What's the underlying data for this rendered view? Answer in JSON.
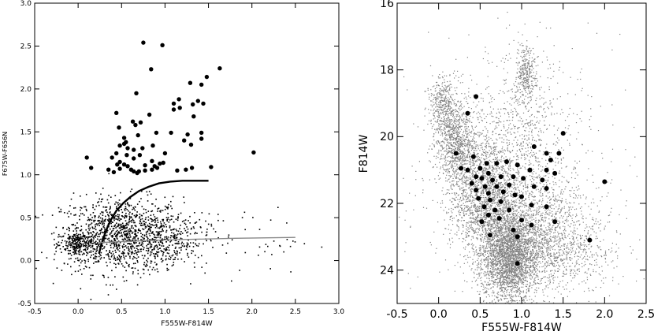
{
  "chart_data": [
    {
      "type": "scatter",
      "xlabel": "F555W-F814W",
      "ylabel": "F675W-F656N",
      "xlim": [
        -0.5,
        3.0
      ],
      "ylim": [
        -0.5,
        3.0
      ],
      "xticks": [
        "-0.5",
        "0.0",
        "0.5",
        "1.0",
        "1.5",
        "2.0",
        "2.5",
        "3.0"
      ],
      "yticks": [
        "-0.5",
        "0.0",
        "0.5",
        "1.0",
        "1.5",
        "2.0",
        "2.5",
        "3.0"
      ],
      "grid": false,
      "series": [
        {
          "style": "small black dots",
          "color": "#000000",
          "clusters": [
            {
              "cx": 0.5,
              "cy": 0.3,
              "sx": 0.35,
              "sy": 0.22,
              "n": 1100
            },
            {
              "cx": 0.0,
              "cy": 0.2,
              "sx": 0.1,
              "sy": 0.08,
              "n": 260
            },
            {
              "cx": 1.0,
              "cy": 0.25,
              "sx": 0.25,
              "sy": 0.15,
              "n": 260
            },
            {
              "cx": 1.9,
              "cy": 0.25,
              "sx": 0.4,
              "sy": 0.2,
              "n": 45
            }
          ]
        },
        {
          "style": "large filled circles",
          "color": "#000000",
          "points": [
            [
              0.75,
              2.54
            ],
            [
              0.97,
              2.51
            ],
            [
              0.84,
              2.23
            ],
            [
              1.63,
              2.24
            ],
            [
              1.48,
              2.14
            ],
            [
              1.29,
              2.07
            ],
            [
              1.42,
              2.05
            ],
            [
              0.67,
              1.95
            ],
            [
              1.16,
              1.88
            ],
            [
              1.1,
              1.83
            ],
            [
              1.38,
              1.86
            ],
            [
              1.44,
              1.83
            ],
            [
              1.32,
              1.82
            ],
            [
              1.17,
              1.78
            ],
            [
              1.1,
              1.76
            ],
            [
              1.33,
              1.68
            ],
            [
              0.44,
              1.72
            ],
            [
              0.82,
              1.7
            ],
            [
              0.63,
              1.62
            ],
            [
              0.72,
              1.61
            ],
            [
              0.66,
              1.58
            ],
            [
              0.47,
              1.55
            ],
            [
              0.9,
              1.49
            ],
            [
              1.07,
              1.49
            ],
            [
              0.69,
              1.46
            ],
            [
              1.26,
              1.47
            ],
            [
              1.42,
              1.49
            ],
            [
              0.53,
              1.43
            ],
            [
              1.42,
              1.42
            ],
            [
              1.22,
              1.4
            ],
            [
              1.3,
              1.35
            ],
            [
              0.55,
              1.38
            ],
            [
              0.53,
              1.36
            ],
            [
              0.48,
              1.34
            ],
            [
              0.86,
              1.34
            ],
            [
              0.57,
              1.31
            ],
            [
              0.74,
              1.31
            ],
            [
              0.64,
              1.29
            ],
            [
              0.71,
              1.23
            ],
            [
              0.44,
              1.25
            ],
            [
              0.56,
              1.23
            ],
            [
              1.0,
              1.25
            ],
            [
              0.1,
              1.2
            ],
            [
              0.39,
              1.2
            ],
            [
              0.48,
              1.15
            ],
            [
              0.64,
              1.19
            ],
            [
              0.85,
              1.16
            ],
            [
              0.45,
              1.12
            ],
            [
              0.53,
              1.12
            ],
            [
              0.57,
              1.1
            ],
            [
              0.77,
              1.11
            ],
            [
              0.94,
              1.13
            ],
            [
              0.98,
              1.14
            ],
            [
              0.88,
              1.1
            ],
            [
              0.91,
              1.08
            ],
            [
              0.35,
              1.06
            ],
            [
              0.48,
              1.07
            ],
            [
              0.61,
              1.06
            ],
            [
              0.64,
              1.04
            ],
            [
              0.7,
              1.04
            ],
            [
              0.77,
              1.05
            ],
            [
              0.85,
              1.06
            ],
            [
              1.24,
              1.06
            ],
            [
              1.31,
              1.08
            ],
            [
              1.53,
              1.09
            ],
            [
              1.14,
              1.05
            ],
            [
              0.15,
              1.08
            ],
            [
              0.41,
              1.03
            ],
            [
              0.68,
              1.02
            ],
            [
              2.02,
              1.26
            ]
          ]
        },
        {
          "style": "thick black curve",
          "color": "#000000",
          "points": [
            [
              0.24,
              0.08
            ],
            [
              0.26,
              0.16
            ],
            [
              0.29,
              0.26
            ],
            [
              0.33,
              0.37
            ],
            [
              0.38,
              0.48
            ],
            [
              0.44,
              0.58
            ],
            [
              0.52,
              0.67
            ],
            [
              0.6,
              0.74
            ],
            [
              0.7,
              0.81
            ],
            [
              0.81,
              0.86
            ],
            [
              0.93,
              0.9
            ],
            [
              1.06,
              0.92
            ],
            [
              1.2,
              0.93
            ],
            [
              1.35,
              0.93
            ],
            [
              1.5,
              0.93
            ]
          ]
        },
        {
          "style": "thin gray line",
          "color": "#888888",
          "points": [
            [
              0.25,
              0.21
            ],
            [
              1.0,
              0.24
            ],
            [
              1.8,
              0.26
            ],
            [
              2.5,
              0.27
            ]
          ]
        }
      ]
    },
    {
      "type": "scatter",
      "xlabel": "F555W-F814W",
      "ylabel": "F814W",
      "xlim": [
        -0.5,
        2.5
      ],
      "ylim": [
        25.0,
        16.0
      ],
      "xticks": [
        "-0.5",
        "0.0",
        "0.5",
        "1.0",
        "1.5",
        "2.0",
        "2.5"
      ],
      "yticks": [
        "16",
        "18",
        "20",
        "22",
        "24"
      ],
      "grid": false,
      "series": [
        {
          "style": "gray dots (dense)",
          "color": "#808080",
          "clusters": [
            {
              "cx": 0.85,
              "cy": 23.6,
              "sx": 0.17,
              "sy": 0.7,
              "n": 2600
            },
            {
              "cx": 0.55,
              "cy": 21.8,
              "sx": 0.2,
              "sy": 0.9,
              "n": 1700
            },
            {
              "cx": 0.2,
              "cy": 20.2,
              "sx": 0.12,
              "sy": 0.6,
              "n": 900
            },
            {
              "cx": 0.05,
              "cy": 19.0,
              "sx": 0.08,
              "sy": 0.4,
              "n": 350
            },
            {
              "cx": 1.2,
              "cy": 22.8,
              "sx": 0.3,
              "sy": 0.8,
              "n": 1000
            },
            {
              "cx": 1.5,
              "cy": 23.5,
              "sx": 0.35,
              "sy": 0.6,
              "n": 500
            },
            {
              "cx": 1.05,
              "cy": 18.1,
              "sx": 0.06,
              "sy": 0.35,
              "n": 260
            },
            {
              "cx": 1.0,
              "cy": 20.0,
              "sx": 0.25,
              "sy": 1.5,
              "n": 600
            },
            {
              "cx": 0.9,
              "cy": 21.5,
              "sx": 0.6,
              "sy": 1.8,
              "n": 900
            }
          ]
        },
        {
          "style": "black filled circles",
          "color": "#000000",
          "points": [
            [
              0.45,
              18.8
            ],
            [
              0.35,
              19.3
            ],
            [
              1.5,
              19.9
            ],
            [
              1.15,
              20.3
            ],
            [
              1.45,
              20.5
            ],
            [
              0.21,
              20.5
            ],
            [
              0.42,
              20.6
            ],
            [
              0.58,
              20.8
            ],
            [
              1.3,
              20.5
            ],
            [
              1.35,
              20.7
            ],
            [
              0.95,
              20.85
            ],
            [
              0.7,
              20.8
            ],
            [
              0.5,
              20.95
            ],
            [
              0.82,
              20.75
            ],
            [
              0.27,
              20.95
            ],
            [
              0.35,
              21.0
            ],
            [
              0.6,
              21.1
            ],
            [
              1.1,
              21.0
            ],
            [
              1.3,
              21.0
            ],
            [
              0.45,
              21.2
            ],
            [
              0.52,
              21.25
            ],
            [
              0.65,
              21.3
            ],
            [
              0.75,
              21.2
            ],
            [
              0.9,
              21.2
            ],
            [
              1.02,
              21.25
            ],
            [
              1.25,
              21.3
            ],
            [
              1.4,
              21.1
            ],
            [
              0.4,
              21.4
            ],
            [
              0.56,
              21.5
            ],
            [
              0.7,
              21.5
            ],
            [
              0.85,
              21.45
            ],
            [
              1.15,
              21.5
            ],
            [
              1.3,
              21.55
            ],
            [
              0.45,
              21.6
            ],
            [
              0.6,
              21.7
            ],
            [
              0.78,
              21.65
            ],
            [
              0.92,
              21.75
            ],
            [
              1.0,
              21.8
            ],
            [
              0.48,
              21.85
            ],
            [
              0.62,
              21.9
            ],
            [
              0.75,
              21.95
            ],
            [
              0.55,
              22.1
            ],
            [
              0.68,
              22.2
            ],
            [
              0.85,
              22.2
            ],
            [
              1.12,
              22.05
            ],
            [
              1.3,
              22.1
            ],
            [
              0.6,
              22.35
            ],
            [
              0.73,
              22.45
            ],
            [
              1.0,
              22.5
            ],
            [
              1.4,
              22.55
            ],
            [
              0.52,
              22.55
            ],
            [
              1.12,
              22.65
            ],
            [
              0.9,
              22.8
            ],
            [
              0.62,
              22.95
            ],
            [
              0.95,
              23.0
            ],
            [
              2.0,
              21.35
            ],
            [
              1.82,
              23.1
            ],
            [
              0.95,
              23.8
            ]
          ]
        }
      ]
    }
  ]
}
